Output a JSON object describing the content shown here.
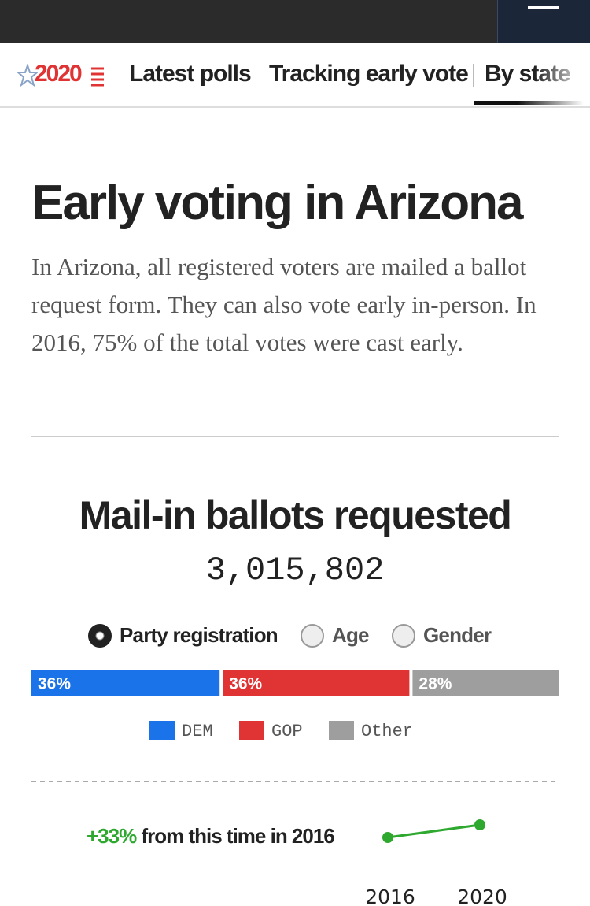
{
  "nav": {
    "logo": "2020",
    "items": [
      "Latest polls",
      "Tracking early vote",
      "By state"
    ]
  },
  "article": {
    "title": "Early voting in Arizona",
    "body": "In Arizona, all registered voters are mailed a ballot request form. They can also vote early in-person. In 2016, 75% of the total votes were cast early."
  },
  "chart_data": [
    {
      "type": "stacked_bar",
      "title": "Mail-in ballots requested",
      "total": "3,015,802",
      "options": [
        "Party registration",
        "Age",
        "Gender"
      ],
      "selected": 0,
      "xlim": [
        0,
        100
      ],
      "series": [
        {
          "name": "DEM",
          "color": "#1a73e8",
          "values": [
            36
          ],
          "value_labels": [
            "36%"
          ]
        },
        {
          "name": "GOP",
          "color": "#e03434",
          "values": [
            36
          ],
          "value_labels": [
            "36%"
          ]
        },
        {
          "name": "Other",
          "color": "#9e9e9e",
          "values": [
            28
          ],
          "value_labels": [
            "28%"
          ]
        }
      ]
    },
    {
      "type": "line",
      "change": 33,
      "change_label": "+33%",
      "text": "from this time in 2016",
      "categories": [
        "2016",
        "2020"
      ],
      "color": "#2ea82e"
    }
  ]
}
